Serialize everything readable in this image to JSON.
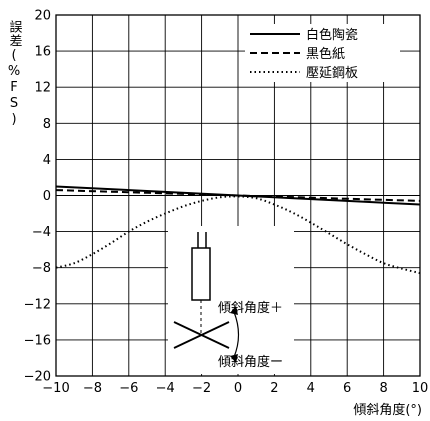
{
  "chart_data": {
    "type": "line",
    "title": "",
    "xlabel": "傾斜角度(°)",
    "ylabel": "誤差(%FS)",
    "xlim": [
      -10,
      10
    ],
    "ylim": [
      -20,
      20
    ],
    "xticks": [
      -10,
      -8,
      -6,
      -4,
      -2,
      0,
      2,
      4,
      6,
      8,
      10
    ],
    "xtick_labels": [
      "−10",
      "−8",
      "−6",
      "−4",
      "−2",
      "0",
      "2",
      "4",
      "6",
      "8",
      "10"
    ],
    "yticks": [
      -20,
      -16,
      -12,
      -8,
      -4,
      0,
      4,
      8,
      12,
      16,
      20
    ],
    "ytick_labels": [
      "−20",
      "−16",
      "−12",
      "−8",
      "−4",
      "0",
      "4",
      "8",
      "12",
      "16",
      "20"
    ],
    "grid": true,
    "legend_position": "top-right",
    "series": [
      {
        "name": "白色陶瓷",
        "style": "solid",
        "x": [
          -10,
          -5,
          0,
          5,
          10
        ],
        "y": [
          1.0,
          0.5,
          0.0,
          -0.5,
          -1.0
        ]
      },
      {
        "name": "黒色紙",
        "style": "dashed",
        "x": [
          -10,
          -5,
          0,
          5,
          10
        ],
        "y": [
          0.6,
          0.3,
          0.0,
          -0.3,
          -0.6
        ]
      },
      {
        "name": "壓延鋼板",
        "style": "dotted",
        "x": [
          -10,
          -9,
          -8,
          -7,
          -6,
          -5,
          -4,
          -3,
          -2,
          -1,
          0,
          1,
          2,
          3,
          4,
          5,
          6,
          7,
          8,
          9,
          10
        ],
        "y": [
          -8.0,
          -7.5,
          -6.5,
          -5.3,
          -4.0,
          -2.9,
          -2.0,
          -1.2,
          -0.6,
          -0.2,
          -0.1,
          -0.3,
          -1.0,
          -1.9,
          -3.0,
          -4.2,
          -5.4,
          -6.5,
          -7.5,
          -8.1,
          -8.6
        ]
      }
    ],
    "annotations": {
      "plus_label": "傾斜角度＋",
      "minus_label": "傾斜角度ー"
    }
  }
}
